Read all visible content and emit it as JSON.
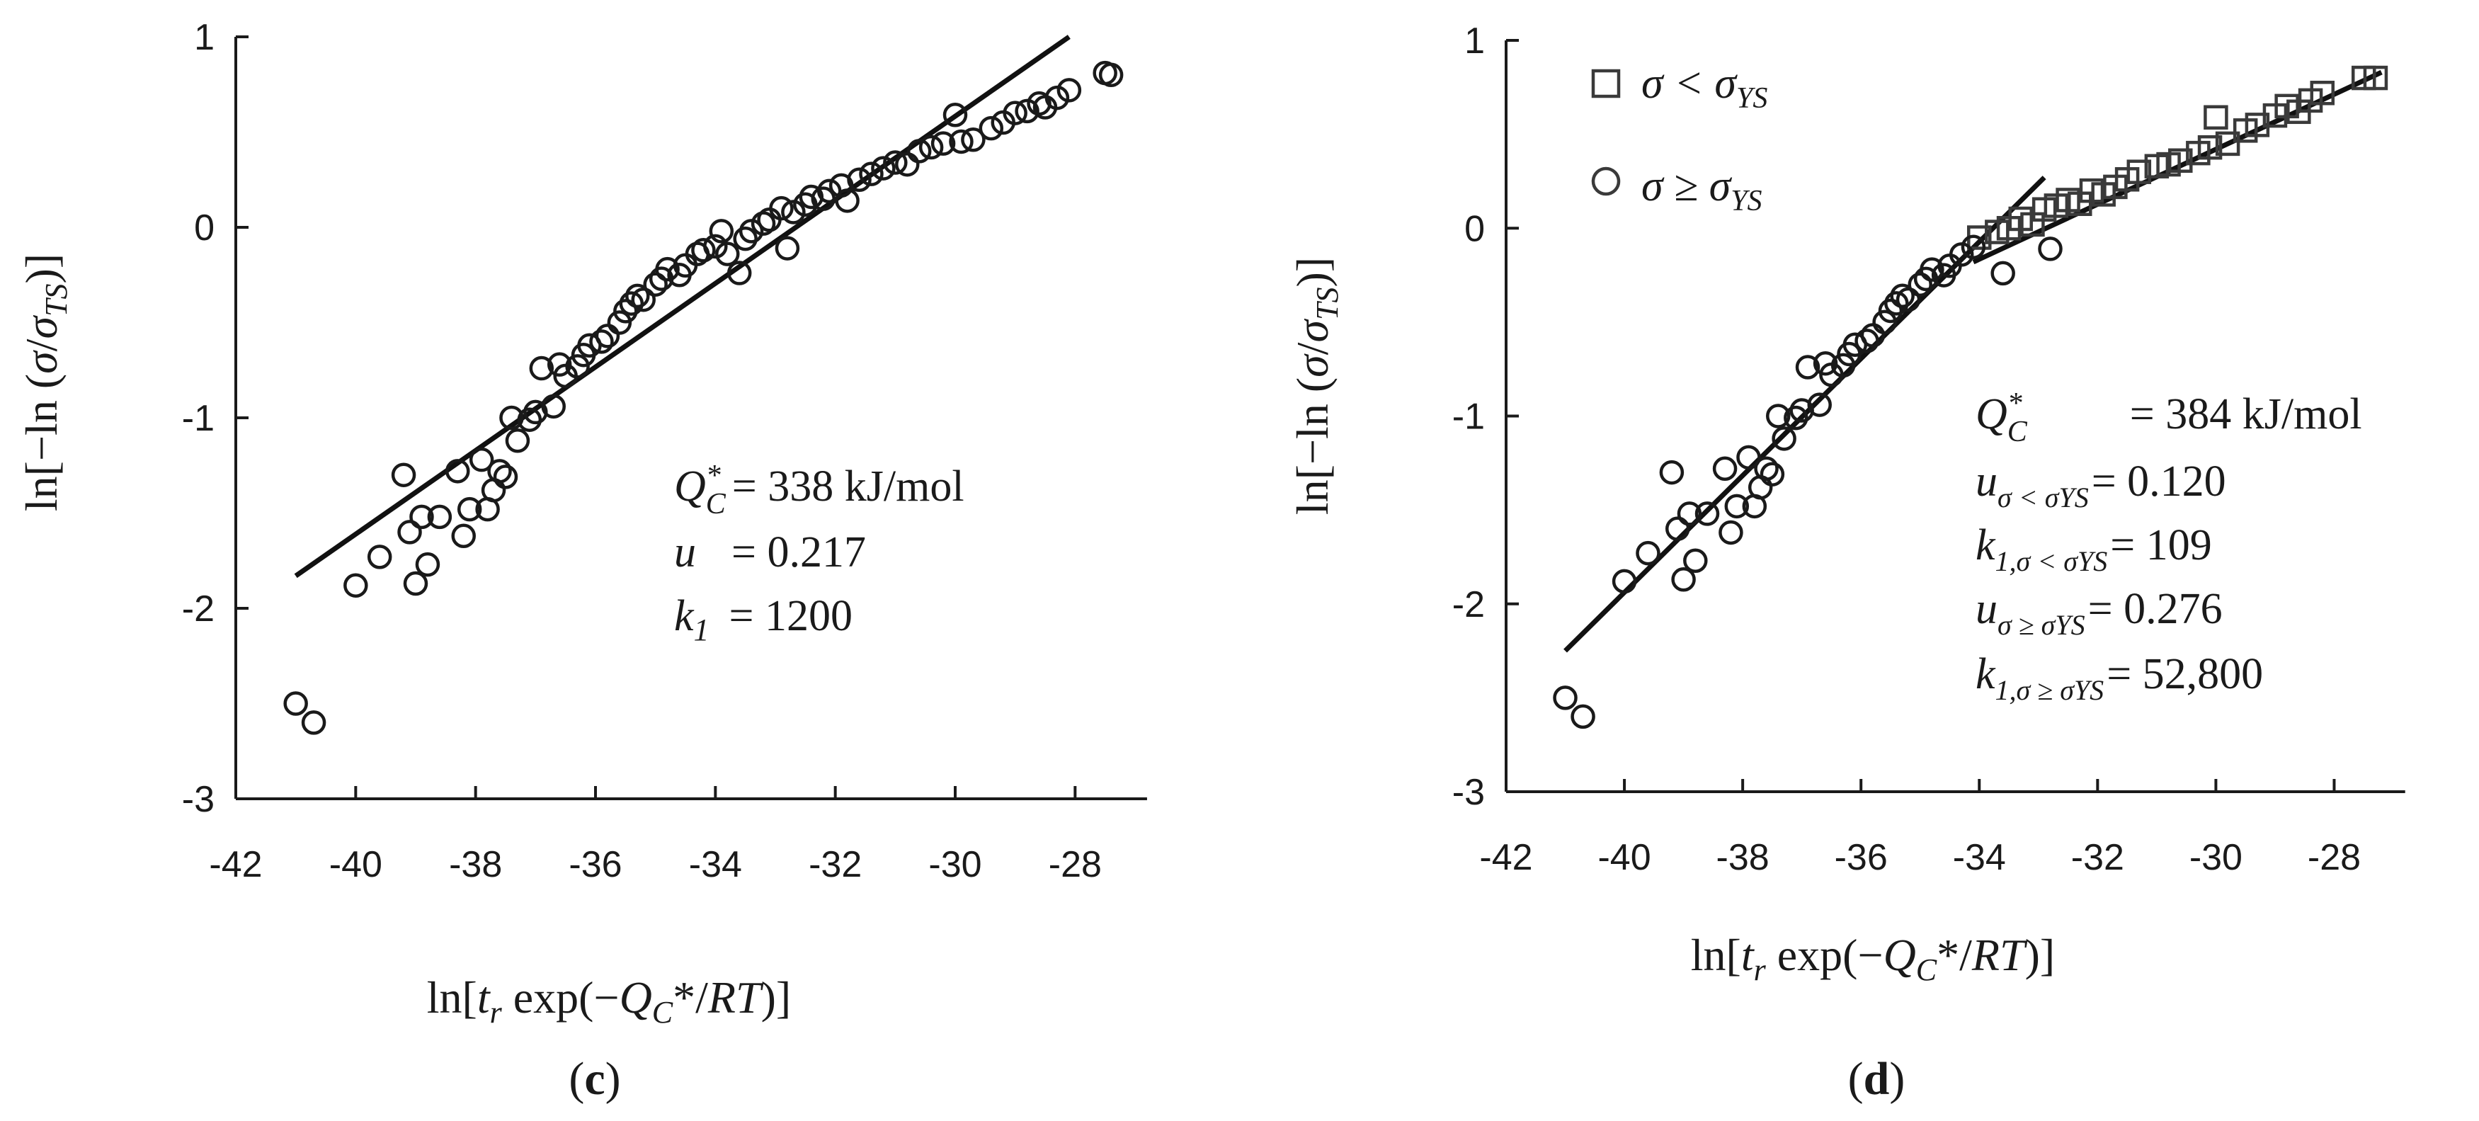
{
  "chart_data": [
    {
      "panel": "(c)",
      "panel_letter": "c",
      "type": "scatter",
      "xlabel": "ln[t_r exp(−Q_C*/RT)]",
      "ylabel": "ln[−ln (σ/σ_TS)]",
      "xlim": [
        -42,
        -27
      ],
      "ylim": [
        -3,
        1
      ],
      "xticks": [
        "-42",
        "-40",
        "-38",
        "-36",
        "-34",
        "-32",
        "-30",
        "-28"
      ],
      "yticks": [
        "1",
        "0",
        "-1",
        "-2",
        "-3"
      ],
      "grid": false,
      "fit_lines": [
        {
          "name": "fit",
          "x": [
            -41,
            -28.1
          ],
          "y": [
            -1.83,
            1.0
          ]
        }
      ],
      "series": [
        {
          "name": "data",
          "marker": "circle",
          "points": [
            [
              -41.0,
              -2.5
            ],
            [
              -40.7,
              -2.6
            ],
            [
              -40.0,
              -1.88
            ],
            [
              -39.6,
              -1.73
            ],
            [
              -39.2,
              -1.3
            ],
            [
              -39.1,
              -1.6
            ],
            [
              -39.0,
              -1.87
            ],
            [
              -38.9,
              -1.52
            ],
            [
              -38.8,
              -1.77
            ],
            [
              -38.6,
              -1.52
            ],
            [
              -38.3,
              -1.28
            ],
            [
              -38.2,
              -1.62
            ],
            [
              -38.1,
              -1.48
            ],
            [
              -37.9,
              -1.22
            ],
            [
              -37.8,
              -1.48
            ],
            [
              -37.7,
              -1.38
            ],
            [
              -37.6,
              -1.28
            ],
            [
              -37.5,
              -1.31
            ],
            [
              -37.4,
              -1.0
            ],
            [
              -37.3,
              -1.12
            ],
            [
              -37.1,
              -1.01
            ],
            [
              -37.0,
              -0.97
            ],
            [
              -36.9,
              -0.74
            ],
            [
              -36.7,
              -0.94
            ],
            [
              -36.6,
              -0.72
            ],
            [
              -36.5,
              -0.78
            ],
            [
              -36.3,
              -0.73
            ],
            [
              -36.2,
              -0.67
            ],
            [
              -36.1,
              -0.62
            ],
            [
              -35.9,
              -0.6
            ],
            [
              -35.8,
              -0.57
            ],
            [
              -35.6,
              -0.5
            ],
            [
              -35.5,
              -0.44
            ],
            [
              -35.4,
              -0.4
            ],
            [
              -35.3,
              -0.36
            ],
            [
              -35.2,
              -0.38
            ],
            [
              -35.0,
              -0.3
            ],
            [
              -34.9,
              -0.27
            ],
            [
              -34.8,
              -0.22
            ],
            [
              -34.6,
              -0.25
            ],
            [
              -34.5,
              -0.2
            ],
            [
              -34.3,
              -0.14
            ],
            [
              -34.2,
              -0.12
            ],
            [
              -34.0,
              -0.1
            ],
            [
              -33.9,
              -0.02
            ],
            [
              -33.8,
              -0.14
            ],
            [
              -33.6,
              -0.24
            ],
            [
              -33.5,
              -0.06
            ],
            [
              -33.4,
              -0.02
            ],
            [
              -33.2,
              0.02
            ],
            [
              -33.1,
              0.04
            ],
            [
              -32.9,
              0.1
            ],
            [
              -32.8,
              -0.11
            ],
            [
              -32.7,
              0.08
            ],
            [
              -32.5,
              0.12
            ],
            [
              -32.4,
              0.16
            ],
            [
              -32.2,
              0.15
            ],
            [
              -32.1,
              0.19
            ],
            [
              -31.9,
              0.22
            ],
            [
              -31.8,
              0.14
            ],
            [
              -31.6,
              0.25
            ],
            [
              -31.4,
              0.28
            ],
            [
              -31.2,
              0.31
            ],
            [
              -31.0,
              0.34
            ],
            [
              -30.8,
              0.33
            ],
            [
              -30.6,
              0.4
            ],
            [
              -30.4,
              0.42
            ],
            [
              -30.2,
              0.44
            ],
            [
              -30.0,
              0.59
            ],
            [
              -29.9,
              0.45
            ],
            [
              -29.7,
              0.46
            ],
            [
              -29.4,
              0.52
            ],
            [
              -29.2,
              0.55
            ],
            [
              -29.0,
              0.6
            ],
            [
              -28.8,
              0.61
            ],
            [
              -28.6,
              0.65
            ],
            [
              -28.5,
              0.63
            ],
            [
              -28.3,
              0.68
            ],
            [
              -28.1,
              0.72
            ],
            [
              -27.5,
              0.81
            ],
            [
              -27.4,
              0.8
            ]
          ]
        }
      ],
      "annotations": {
        "line1": {
          "sym": "Q",
          "sub": "C",
          "sup": "*",
          "value": "= 338 kJ/mol"
        },
        "line2": {
          "sym": "u",
          "value": "= 0.217"
        },
        "line3": {
          "sym": "k",
          "sub": "1",
          "value": "= 1200"
        }
      }
    },
    {
      "panel": "(d)",
      "panel_letter": "d",
      "type": "scatter",
      "xlabel": "ln[t_r exp(−Q_C*/RT)]",
      "ylabel": "ln[−ln (σ/σ_TS)]",
      "xlim": [
        -42,
        -27
      ],
      "ylim": [
        -3,
        1
      ],
      "xticks": [
        "-42",
        "-40",
        "-38",
        "-36",
        "-34",
        "-32",
        "-30",
        "-28"
      ],
      "yticks": [
        "1",
        "0",
        "-1",
        "-2",
        "-3"
      ],
      "grid": false,
      "legend_position": "top-left",
      "legend": [
        {
          "marker": "square",
          "text": "σ < σ",
          "sub": "YS"
        },
        {
          "marker": "circle",
          "text": "σ ≥ σ",
          "sub": "YS"
        }
      ],
      "fit_lines": [
        {
          "name": "fit σ ≥ σYS",
          "x": [
            -41,
            -32.9
          ],
          "y": [
            -2.25,
            0.27
          ]
        },
        {
          "name": "fit σ < σYS",
          "x": [
            -34.1,
            -27.2
          ],
          "y": [
            -0.18,
            0.83
          ]
        }
      ],
      "series": [
        {
          "name": "σ < σYS",
          "marker": "square",
          "points": [
            [
              -34.0,
              -0.05
            ],
            [
              -33.7,
              -0.02
            ],
            [
              -33.5,
              0.0
            ],
            [
              -33.3,
              0.05
            ],
            [
              -33.1,
              0.02
            ],
            [
              -32.9,
              0.1
            ],
            [
              -32.7,
              0.12
            ],
            [
              -32.5,
              0.15
            ],
            [
              -32.3,
              0.13
            ],
            [
              -32.1,
              0.2
            ],
            [
              -31.9,
              0.18
            ],
            [
              -31.7,
              0.22
            ],
            [
              -31.5,
              0.26
            ],
            [
              -31.3,
              0.3
            ],
            [
              -31.0,
              0.33
            ],
            [
              -30.8,
              0.34
            ],
            [
              -30.6,
              0.36
            ],
            [
              -30.3,
              0.4
            ],
            [
              -30.1,
              0.43
            ],
            [
              -30.0,
              0.59
            ],
            [
              -29.8,
              0.45
            ],
            [
              -29.5,
              0.52
            ],
            [
              -29.3,
              0.55
            ],
            [
              -29.0,
              0.6
            ],
            [
              -28.8,
              0.65
            ],
            [
              -28.6,
              0.62
            ],
            [
              -28.4,
              0.68
            ],
            [
              -28.2,
              0.72
            ],
            [
              -27.5,
              0.8
            ],
            [
              -27.3,
              0.8
            ]
          ]
        },
        {
          "name": "σ ≥ σYS",
          "marker": "circle",
          "points": [
            [
              -41.0,
              -2.5
            ],
            [
              -40.7,
              -2.6
            ],
            [
              -40.0,
              -1.88
            ],
            [
              -39.6,
              -1.73
            ],
            [
              -39.2,
              -1.3
            ],
            [
              -39.1,
              -1.6
            ],
            [
              -39.0,
              -1.87
            ],
            [
              -38.9,
              -1.52
            ],
            [
              -38.8,
              -1.77
            ],
            [
              -38.6,
              -1.52
            ],
            [
              -38.3,
              -1.28
            ],
            [
              -38.2,
              -1.62
            ],
            [
              -38.1,
              -1.48
            ],
            [
              -37.9,
              -1.22
            ],
            [
              -37.8,
              -1.48
            ],
            [
              -37.7,
              -1.38
            ],
            [
              -37.6,
              -1.28
            ],
            [
              -37.5,
              -1.31
            ],
            [
              -37.4,
              -1.0
            ],
            [
              -37.3,
              -1.12
            ],
            [
              -37.1,
              -1.01
            ],
            [
              -37.0,
              -0.97
            ],
            [
              -36.9,
              -0.74
            ],
            [
              -36.7,
              -0.94
            ],
            [
              -36.6,
              -0.72
            ],
            [
              -36.5,
              -0.78
            ],
            [
              -36.3,
              -0.73
            ],
            [
              -36.2,
              -0.67
            ],
            [
              -36.1,
              -0.62
            ],
            [
              -35.9,
              -0.6
            ],
            [
              -35.8,
              -0.57
            ],
            [
              -35.6,
              -0.5
            ],
            [
              -35.5,
              -0.44
            ],
            [
              -35.4,
              -0.4
            ],
            [
              -35.3,
              -0.36
            ],
            [
              -35.2,
              -0.38
            ],
            [
              -35.0,
              -0.3
            ],
            [
              -34.9,
              -0.27
            ],
            [
              -34.8,
              -0.22
            ],
            [
              -34.6,
              -0.25
            ],
            [
              -34.5,
              -0.2
            ],
            [
              -34.3,
              -0.14
            ],
            [
              -34.1,
              -0.1
            ],
            [
              -33.6,
              -0.24
            ],
            [
              -32.8,
              -0.11
            ]
          ]
        }
      ],
      "annotations": {
        "line1": {
          "sym": "Q",
          "sub": "C",
          "sup": "*",
          "value": "= 384 kJ/mol"
        },
        "line2": {
          "sym": "u",
          "sub": "σ < σYS",
          "value": "= 0.120"
        },
        "line3": {
          "sym": "k",
          "sub": "1,σ < σYS",
          "value": "= 109"
        },
        "line4": {
          "sym": "u",
          "sub": "σ ≥ σYS",
          "value": "= 0.276"
        },
        "line5": {
          "sym": "k",
          "sub": "1,σ ≥ σYS",
          "value": "= 52,800"
        }
      }
    }
  ]
}
